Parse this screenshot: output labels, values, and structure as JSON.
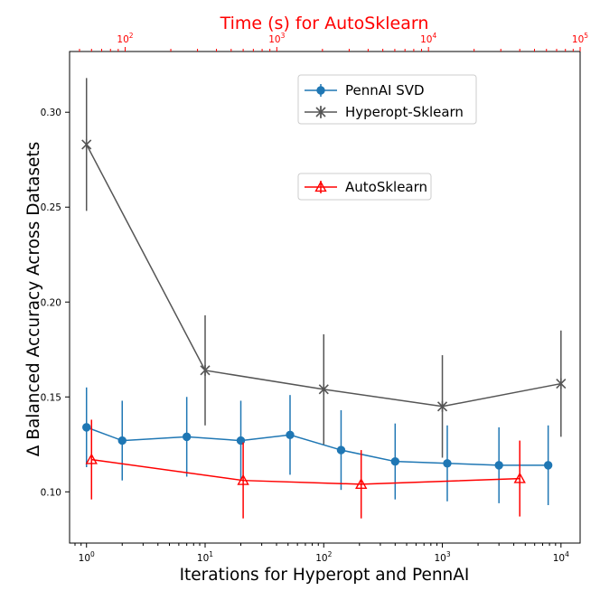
{
  "chart_data": {
    "type": "line",
    "top_title": "Time (s) for AutoSklearn",
    "xlabel": "Iterations for Hyperopt and PennAI",
    "ylabel": "Δ Balanced Accuracy Across Datasets",
    "xscale": "log",
    "xlim": [
      0.72,
      14500
    ],
    "ylim": [
      0.073,
      0.332
    ],
    "x_ticks": [
      {
        "value": 1,
        "base": "10",
        "exp": "0"
      },
      {
        "value": 10,
        "base": "10",
        "exp": "1"
      },
      {
        "value": 100,
        "base": "10",
        "exp": "2"
      },
      {
        "value": 1000,
        "base": "10",
        "exp": "3"
      },
      {
        "value": 10000,
        "base": "10",
        "exp": "4"
      }
    ],
    "y_ticks": [
      {
        "value": 0.1,
        "label": "0.10"
      },
      {
        "value": 0.15,
        "label": "0.15"
      },
      {
        "value": 0.2,
        "label": "0.20"
      },
      {
        "value": 0.25,
        "label": "0.25"
      },
      {
        "value": 0.3,
        "label": "0.30"
      }
    ],
    "top_axis": {
      "color": "#ff0000",
      "xlim": [
        43,
        100000
      ],
      "ticks": [
        {
          "value": 100,
          "base": "10",
          "exp": "2"
        },
        {
          "value": 1000,
          "base": "10",
          "exp": "3"
        },
        {
          "value": 10000,
          "base": "10",
          "exp": "4"
        },
        {
          "value": 100000,
          "base": "10",
          "exp": "5"
        }
      ]
    },
    "series": [
      {
        "name": "PennAI SVD",
        "color": "#1f77b4",
        "marker": "circle",
        "axis": "bottom",
        "x": [
          1,
          2,
          7,
          20,
          52,
          140,
          400,
          1100,
          3000,
          7800
        ],
        "y": [
          0.134,
          0.127,
          0.129,
          0.127,
          0.13,
          0.122,
          0.116,
          0.115,
          0.114,
          0.114
        ],
        "err": [
          0.021,
          0.021,
          0.021,
          0.021,
          0.021,
          0.021,
          0.02,
          0.02,
          0.02,
          0.021
        ]
      },
      {
        "name": "Hyperopt-Sklearn",
        "color": "#555555",
        "marker": "x",
        "axis": "bottom",
        "x": [
          1,
          10,
          100,
          1000,
          10000
        ],
        "y": [
          0.283,
          0.164,
          0.154,
          0.145,
          0.157
        ],
        "err": [
          0.035,
          0.029,
          0.029,
          0.027,
          0.028
        ]
      },
      {
        "name": "AutoSklearn",
        "color": "#ff0000",
        "marker": "triangle",
        "axis": "top",
        "x": [
          60,
          600,
          3600,
          40000
        ],
        "y": [
          0.117,
          0.106,
          0.104,
          0.107
        ],
        "err": [
          0.021,
          0.02,
          0.018,
          0.02
        ]
      }
    ]
  }
}
